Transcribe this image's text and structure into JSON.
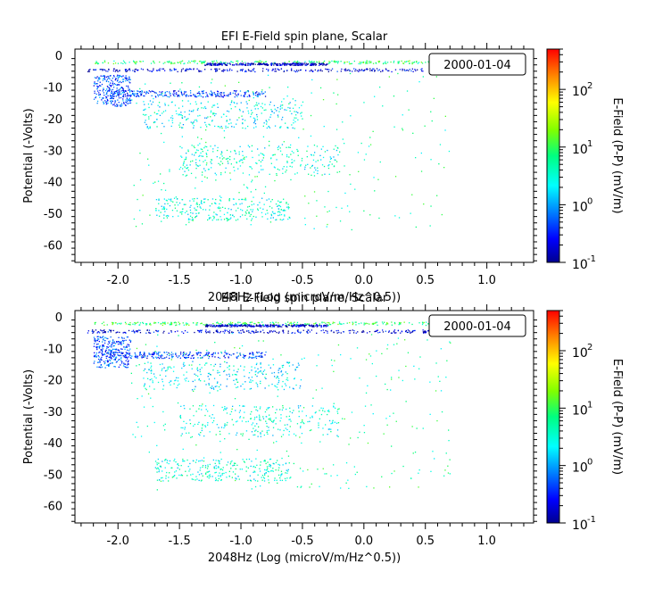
{
  "chart_data": [
    {
      "type": "scatter",
      "title": "EFI  E-Field spin plane, Scalar",
      "xlabel": "2048Hz (Log (microV/m/Hz^0.5))",
      "ylabel": "Potential (-Volts)",
      "annotation": "2000-01-04",
      "xlim": [
        -2.35,
        1.38
      ],
      "ylim": [
        -65.5,
        2
      ],
      "xticks": [
        -2.0,
        -1.5,
        -1.0,
        -0.5,
        0.0,
        0.5,
        1.0
      ],
      "xtick_labels": [
        "-2.0",
        "-1.5",
        "-1.0",
        "-0.5",
        "0.0",
        "0.5",
        "1.0"
      ],
      "yticks": [
        0,
        -10,
        -20,
        -30,
        -40,
        -50,
        -60
      ],
      "ytick_labels": [
        "0",
        "-10",
        "-20",
        "-30",
        "-40",
        "-50",
        "-60"
      ],
      "colorbar": {
        "label": "E-Field (P-P) (mV/m)",
        "scale": "log",
        "range": [
          0.1,
          500
        ],
        "tick_values": [
          0.1,
          1,
          10,
          100
        ],
        "tick_labels": [
          {
            "base": "10",
            "exp": "-1"
          },
          {
            "base": "10",
            "exp": "0"
          },
          {
            "base": "10",
            "exp": "1"
          },
          {
            "base": "10",
            "exp": "2"
          }
        ]
      },
      "point_clusters": [
        {
          "x": [
            -2.2,
            0.6
          ],
          "y": [
            -2.5,
            -1.5
          ],
          "value": 8
        },
        {
          "x": [
            -2.25,
            0.55
          ],
          "y": [
            -5,
            -4
          ],
          "value": 0.2
        },
        {
          "x": [
            -1.3,
            -0.3
          ],
          "y": [
            -3,
            -2.3
          ],
          "value": 0.15
        },
        {
          "x": [
            -2.2,
            -1.9
          ],
          "y": [
            -16,
            -6
          ],
          "value": 0.5
        },
        {
          "x": [
            -2.1,
            -0.8
          ],
          "y": [
            -13,
            -11
          ],
          "value": 0.4
        },
        {
          "x": [
            -1.8,
            -0.5
          ],
          "y": [
            -23,
            -14
          ],
          "value": 2
        },
        {
          "x": [
            -1.5,
            -0.2
          ],
          "y": [
            -38,
            -28
          ],
          "value": 3
        },
        {
          "x": [
            -1.7,
            -0.6
          ],
          "y": [
            -52,
            -45
          ],
          "value": 3
        },
        {
          "x": [
            -1.9,
            0.7
          ],
          "y": [
            -55,
            -5
          ],
          "value": 5
        }
      ]
    },
    {
      "type": "scatter",
      "title": "EFI  E-Field spin plane, Scalar",
      "xlabel": "2048Hz (Log (microV/m/Hz^0.5))",
      "ylabel": "Potential (-Volts)",
      "annotation": "2000-01-04",
      "xlim": [
        -2.35,
        1.38
      ],
      "ylim": [
        -65.5,
        2
      ],
      "xticks": [
        -2.0,
        -1.5,
        -1.0,
        -0.5,
        0.0,
        0.5,
        1.0
      ],
      "xtick_labels": [
        "-2.0",
        "-1.5",
        "-1.0",
        "-0.5",
        "0.0",
        "0.5",
        "1.0"
      ],
      "yticks": [
        0,
        -10,
        -20,
        -30,
        -40,
        -50,
        -60
      ],
      "ytick_labels": [
        "0",
        "-10",
        "-20",
        "-30",
        "-40",
        "-50",
        "-60"
      ],
      "colorbar": {
        "label": "E-Field (P-P) (mV/m)",
        "scale": "log",
        "range": [
          0.1,
          500
        ],
        "tick_values": [
          0.1,
          1,
          10,
          100
        ],
        "tick_labels": [
          {
            "base": "10",
            "exp": "-1"
          },
          {
            "base": "10",
            "exp": "0"
          },
          {
            "base": "10",
            "exp": "1"
          },
          {
            "base": "10",
            "exp": "2"
          }
        ]
      },
      "point_clusters": [
        {
          "x": [
            -2.2,
            0.6
          ],
          "y": [
            -2.5,
            -1.5
          ],
          "value": 8
        },
        {
          "x": [
            -2.25,
            0.55
          ],
          "y": [
            -5,
            -4
          ],
          "value": 0.2
        },
        {
          "x": [
            -1.3,
            -0.3
          ],
          "y": [
            -3,
            -2.3
          ],
          "value": 0.15
        },
        {
          "x": [
            -2.2,
            -1.9
          ],
          "y": [
            -16,
            -6
          ],
          "value": 0.5
        },
        {
          "x": [
            -2.1,
            -0.8
          ],
          "y": [
            -13,
            -11
          ],
          "value": 0.4
        },
        {
          "x": [
            -1.8,
            -0.5
          ],
          "y": [
            -23,
            -14
          ],
          "value": 2
        },
        {
          "x": [
            -1.5,
            -0.2
          ],
          "y": [
            -38,
            -28
          ],
          "value": 3
        },
        {
          "x": [
            -1.7,
            -0.6
          ],
          "y": [
            -52,
            -45
          ],
          "value": 3
        },
        {
          "x": [
            -1.9,
            0.7
          ],
          "y": [
            -55,
            -5
          ],
          "value": 5
        }
      ]
    }
  ]
}
